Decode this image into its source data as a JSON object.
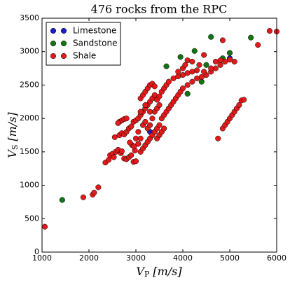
{
  "chart_data": {
    "type": "scatter",
    "title": "476 rocks from the RPC",
    "xlabel": {
      "symbol": "V",
      "sub": "P",
      "unit": "[m/s]"
    },
    "ylabel": {
      "symbol": "V",
      "sub": "S",
      "unit": "[m/s]"
    },
    "xlim": [
      1000,
      6000
    ],
    "xticks": [
      1000,
      2000,
      3000,
      4000,
      5000,
      6000
    ],
    "ylim": [
      0,
      3500
    ],
    "yticks": [
      0,
      500,
      1000,
      1500,
      2000,
      2500,
      3000,
      3500
    ],
    "legend": "upper left",
    "series": [
      {
        "name": "Limestone",
        "color": "#1c1cc8",
        "x": [
          3300,
          5000
        ],
        "values": [
          1800,
          2900
        ]
      },
      {
        "name": "Sandstone",
        "color": "#137413",
        "x": [
          1430,
          3650,
          3950,
          4250,
          4600,
          4850,
          5000,
          5450,
          4400,
          4100,
          4500
        ],
        "values": [
          780,
          2780,
          2920,
          3010,
          3220,
          2900,
          2980,
          3210,
          2550,
          2370,
          2800
        ]
      },
      {
        "name": "Shale",
        "color": "#e31a1a",
        "x": [
          1060,
          1880,
          2080,
          2110,
          2200,
          2350,
          2420,
          2450,
          2500,
          2530,
          2570,
          2620,
          2680,
          2700,
          2750,
          2800,
          2850,
          2900,
          2950,
          3000,
          2980,
          2920,
          2870,
          2960,
          3050,
          3100,
          3150,
          3200,
          3250,
          3300,
          3350,
          3400,
          3450,
          3500,
          3550,
          3600,
          3650,
          3700,
          3750,
          3800,
          3850,
          3900,
          3950,
          4000,
          4100,
          4200,
          4300,
          4400,
          4500,
          4600,
          4700,
          4800,
          4900,
          5000,
          5100,
          2550,
          2650,
          2700,
          2750,
          2800,
          2850,
          2900,
          2950,
          3000,
          3050,
          3100,
          3150,
          3200,
          3250,
          3300,
          3350,
          3400,
          3450,
          3500,
          3550,
          3600,
          3650,
          3700,
          3800,
          3900,
          4000,
          4100,
          4200,
          4300,
          4450,
          4600,
          4700,
          4800,
          2650,
          2700,
          2750,
          2800,
          2620,
          3100,
          3150,
          3200,
          3250,
          3300,
          3350,
          3400,
          3150,
          3200,
          3250,
          3300,
          3350,
          3400,
          3450,
          3500,
          3450,
          3500,
          3550,
          3600,
          3300,
          3200,
          3100,
          3050,
          3000,
          3100,
          4750,
          4850,
          4900,
          4950,
          5000,
          5050,
          5100,
          5150,
          5200,
          5250,
          5300,
          4850,
          5600,
          5850,
          6000,
          3900,
          4000,
          4050,
          4100,
          4200,
          4350,
          4450
        ],
        "values": [
          380,
          820,
          860,
          890,
          970,
          1340,
          1380,
          1450,
          1470,
          1420,
          1500,
          1530,
          1480,
          1510,
          1400,
          1390,
          1420,
          1450,
          1350,
          1360,
          1520,
          1600,
          1640,
          1580,
          1620,
          1500,
          1550,
          1600,
          1650,
          1700,
          1750,
          1800,
          1850,
          1900,
          2000,
          2050,
          2100,
          2150,
          2200,
          2250,
          2300,
          2350,
          2400,
          2450,
          2500,
          2550,
          2600,
          2620,
          2650,
          2700,
          2750,
          2800,
          2850,
          2880,
          2850,
          1720,
          1750,
          1780,
          1760,
          1800,
          1850,
          1880,
          1950,
          1970,
          2000,
          2050,
          2100,
          2150,
          2200,
          2250,
          2300,
          2350,
          2280,
          2330,
          2400,
          2450,
          2500,
          2550,
          2600,
          2630,
          2650,
          2680,
          2700,
          2720,
          2700,
          2750,
          2850,
          2870,
          1950,
          1970,
          1990,
          2000,
          1930,
          2300,
          2350,
          2400,
          2450,
          2500,
          2520,
          2480,
          1900,
          1950,
          1850,
          1900,
          2000,
          2100,
          2150,
          2200,
          1700,
          1750,
          1800,
          1850,
          2100,
          2200,
          2100,
          1800,
          1700,
          1700,
          1700,
          1850,
          1900,
          1950,
          2000,
          2050,
          2100,
          2150,
          2200,
          2270,
          2280,
          3170,
          3100,
          3310,
          3300,
          2700,
          2750,
          2800,
          2870,
          2850,
          2800,
          2950
        ]
      }
    ]
  }
}
